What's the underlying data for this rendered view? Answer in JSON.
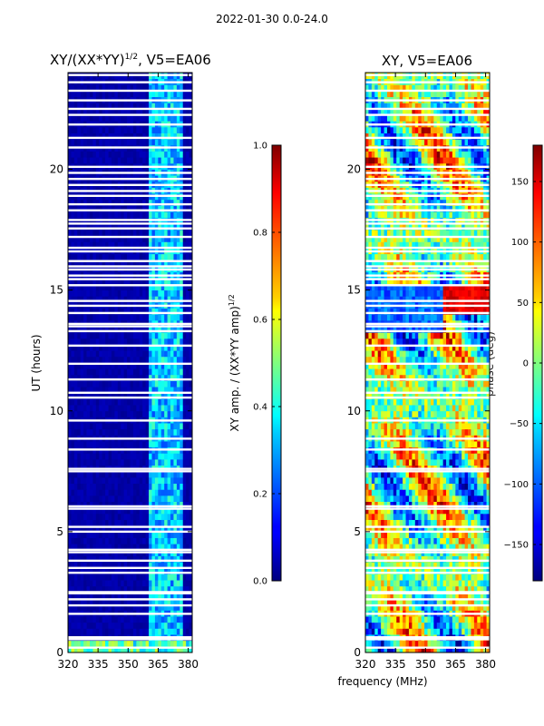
{
  "suptitle": "2022-01-30 0.0-24.0",
  "chart_data": [
    {
      "type": "heatmap",
      "title": "XY/(XX*YY)",
      "title_exp": "1/2",
      "title_suffix": ", V5=EA06",
      "xlabel": "",
      "ylabel": "UT (hours)",
      "xlim": [
        320,
        382
      ],
      "ylim": [
        0,
        24
      ],
      "x_ticks": [
        320,
        335,
        350,
        365,
        380
      ],
      "y_ticks": [
        0,
        5,
        10,
        15,
        20
      ],
      "colorbar": {
        "label": "XY amp. / (XX*YY amp)",
        "label_exp": "1/2",
        "range": [
          0.0,
          1.0
        ],
        "ticks": [
          "0.0",
          "0.2",
          "0.4",
          "0.6",
          "0.8",
          "1.0"
        ],
        "tick_values": [
          0.0,
          0.2,
          0.4,
          0.6,
          0.8,
          1.0
        ]
      }
    },
    {
      "type": "heatmap",
      "title": "XY, V5=EA06",
      "xlabel": "frequency (MHz)",
      "ylabel": "",
      "xlim": [
        320,
        382
      ],
      "ylim": [
        0,
        24
      ],
      "x_ticks": [
        320,
        335,
        350,
        365,
        380
      ],
      "y_ticks": [
        0,
        5,
        10,
        15,
        20
      ],
      "colorbar": {
        "label": "phase (deg)",
        "range": [
          -180,
          180
        ],
        "ticks": [
          "150",
          "100",
          "50",
          "0",
          "−50",
          "−100",
          "−150"
        ],
        "tick_values": [
          150,
          100,
          50,
          0,
          -50,
          -100,
          -150
        ]
      }
    }
  ],
  "flagged_hours": [
    0.2,
    0.55,
    0.63,
    1.6,
    1.95,
    2.2,
    2.45,
    2.5,
    3.3,
    3.5,
    3.8,
    4.15,
    4.25,
    5.0,
    5.2,
    5.95,
    6.05,
    7.5,
    7.6,
    8.4,
    8.85,
    9.6,
    10.55,
    10.75,
    11.3,
    11.95,
    12.7,
    13.3,
    13.5,
    13.6,
    14.05,
    14.35,
    14.55,
    15.2,
    15.45,
    15.6,
    15.85,
    15.98,
    16.2,
    16.6,
    16.75,
    17.2,
    17.55,
    17.75,
    17.9,
    18.3,
    18.55,
    18.9,
    19.1,
    19.35,
    19.6,
    19.85,
    20.1,
    20.9,
    21.3,
    21.85,
    22.25,
    22.5,
    22.85,
    23.25,
    23.6,
    23.9
  ]
}
